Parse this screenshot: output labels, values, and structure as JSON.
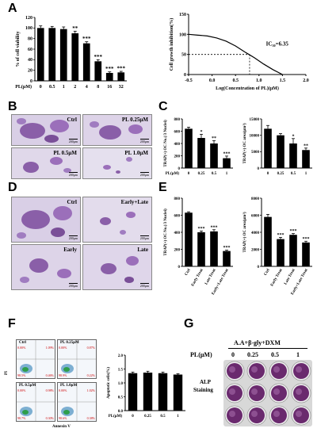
{
  "panels": {
    "a": "A",
    "b": "B",
    "c": "C",
    "d": "D",
    "e": "E",
    "f": "F",
    "g": "G"
  },
  "chart_data": [
    {
      "id": "A1",
      "type": "bar",
      "categories": [
        "0",
        "0.5",
        "1",
        "2",
        "4",
        "8",
        "16",
        "32"
      ],
      "values": [
        100,
        100,
        98,
        90,
        71,
        37,
        15,
        16
      ],
      "errors": [
        4,
        3,
        4,
        4,
        3,
        3,
        2,
        2
      ],
      "stars": [
        "",
        "",
        "",
        "**",
        "***",
        "***",
        "***",
        "***"
      ],
      "xlabel": "PL(μM)",
      "ylabel": "% of cell viability",
      "ylim": [
        0,
        120
      ],
      "yticks": [
        "0",
        "20",
        "40",
        "60",
        "80",
        "100",
        "120"
      ]
    },
    {
      "id": "A2",
      "type": "line",
      "x": [
        -0.5,
        -0.3,
        -0.1,
        0.1,
        0.3,
        0.5,
        0.7,
        0.8,
        0.9,
        1.1,
        1.3,
        1.5
      ],
      "y": [
        100,
        98,
        96,
        91,
        83,
        71,
        56,
        49,
        42,
        26,
        12,
        0
      ],
      "xlabel": "Log(Concentration of PL)(μM)",
      "ylabel": "Cell growth inhibition(%)",
      "xlim": [
        -0.5,
        2.0
      ],
      "ylim": [
        0,
        150
      ],
      "xticks": [
        "-0.5",
        "0.0",
        "0.5",
        "1.0",
        "1.5",
        "2.0"
      ],
      "yticks": [
        "0",
        "50",
        "100",
        "150"
      ],
      "annotation": "IC₅₀=6.35",
      "ic50_x": 0.8
    },
    {
      "id": "C1",
      "type": "bar",
      "categories": [
        "0",
        "0.25",
        "0.5",
        "1"
      ],
      "values": [
        640,
        490,
        400,
        160
      ],
      "errors": [
        25,
        60,
        45,
        35
      ],
      "stars": [
        "",
        "*",
        "**",
        "***"
      ],
      "xlabel": "PL(μM)",
      "ylabel": "TRAP(+) OC No.(/3 Nuclei)",
      "ylim": [
        0,
        800
      ],
      "yticks": [
        "0",
        "200",
        "400",
        "600",
        "800"
      ]
    },
    {
      "id": "C2",
      "type": "bar",
      "categories": [
        "0",
        "0.25",
        "0.5",
        "1"
      ],
      "values": [
        12000,
        10000,
        7500,
        5500
      ],
      "errors": [
        1000,
        500,
        1500,
        600
      ],
      "stars": [
        "",
        "",
        "*",
        "**"
      ],
      "xlabel": "",
      "ylabel": "TRAP(+) OC area(μm²)",
      "ylim": [
        0,
        15000
      ],
      "yticks": [
        "0",
        "5000",
        "10000",
        "15000"
      ]
    },
    {
      "id": "E1",
      "type": "bar",
      "categories": [
        "Ctrl",
        "Early Treat",
        "Late Treat",
        "Early+Late Treat"
      ],
      "values": [
        630,
        400,
        410,
        180
      ],
      "errors": [
        10,
        15,
        20,
        10
      ],
      "stars": [
        "",
        "***",
        "***",
        "***"
      ],
      "xlabel": "",
      "ylabel": "TRAP(+) OC No.(/3 Nuclei)",
      "ylim": [
        0,
        800
      ],
      "yticks": [
        "0",
        "200",
        "400",
        "600",
        "800"
      ]
    },
    {
      "id": "E2",
      "type": "bar",
      "categories": [
        "Ctrl",
        "Early Treat",
        "Late Treat",
        "Early+Late Treat"
      ],
      "values": [
        5800,
        3200,
        3700,
        2800
      ],
      "errors": [
        300,
        200,
        150,
        150
      ],
      "stars": [
        "",
        "***",
        "***",
        "***"
      ],
      "xlabel": "",
      "ylabel": "TRAP(+) OC area(μm²)",
      "ylim": [
        0,
        8000
      ],
      "yticks": [
        "0",
        "2000",
        "4000",
        "6000",
        "8000"
      ]
    },
    {
      "id": "F1",
      "type": "bar",
      "categories": [
        "0",
        "0.25",
        "0.5",
        "1"
      ],
      "values": [
        1.35,
        1.37,
        1.35,
        1.3
      ],
      "errors": [
        0.04,
        0.05,
        0.04,
        0.03
      ],
      "stars": [
        "",
        "",
        "",
        ""
      ],
      "xlabel": "PL(μM)",
      "ylabel": "Apoptotic cells(%)",
      "ylim": [
        0,
        2.0
      ],
      "yticks": [
        "0.0",
        "0.5",
        "1.0",
        "1.5",
        "2.0"
      ]
    }
  ],
  "micro_b": [
    {
      "label": "Ctrl",
      "scale": "200μm"
    },
    {
      "label": "PL 0.25μM",
      "scale": "200μm"
    },
    {
      "label": "PL 0.5μM",
      "scale": "200μm"
    },
    {
      "label": "PL 1.0μM",
      "scale": "200μm"
    }
  ],
  "micro_d": [
    {
      "label": "Ctrl",
      "scale": "200μm"
    },
    {
      "label": "Early+Late",
      "scale": "200μm"
    },
    {
      "label": "Early",
      "scale": "200μm"
    },
    {
      "label": "Late",
      "scale": "200μm"
    }
  ],
  "flow": [
    {
      "label": "Ctrl",
      "q": [
        "1.09%",
        "0.00%",
        "98.5%",
        "0.46%"
      ]
    },
    {
      "label": "PL 0.25μM",
      "q": [
        "0.87%",
        "0.00%",
        "98.9%",
        "0.22%"
      ]
    },
    {
      "label": "PL 0.5μM",
      "q": [
        "0.98%",
        "0.00%",
        "98.7%",
        "0.30%"
      ]
    },
    {
      "label": "PL 1.0μM",
      "q": [
        "1.02%",
        "0.00%",
        "98.6%",
        "0.38%"
      ]
    }
  ],
  "flow_axes": {
    "y": "PI",
    "x": "Annexin V"
  },
  "alp": {
    "header": "A.A+β-gly+DXM",
    "row_label": "PL(μM)",
    "conc": [
      "0",
      "0.25",
      "0.5",
      "1"
    ],
    "caption_1": "ALP",
    "caption_2": "Staining"
  },
  "colors": {
    "bar": "#000000",
    "trap_stain": "#8a5fa8",
    "alp_well": "#6a2a6e",
    "flow_dots": "#2d7fb8"
  }
}
